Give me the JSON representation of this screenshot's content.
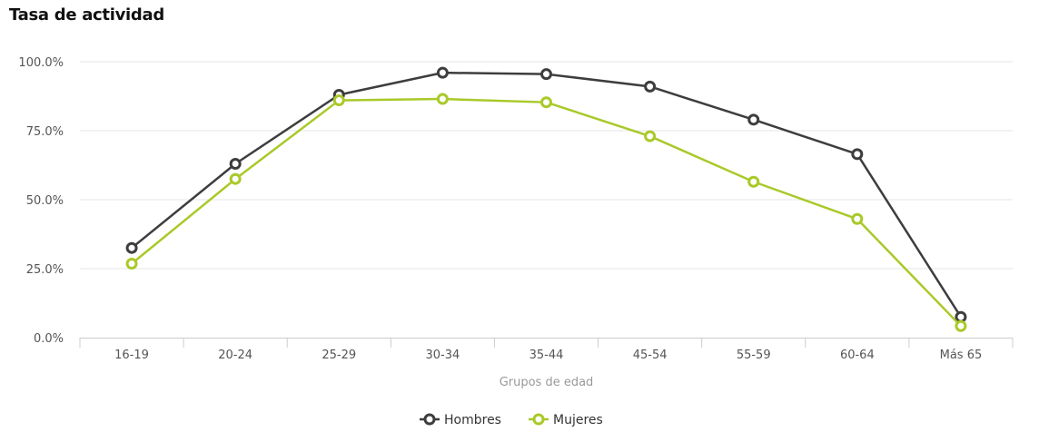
{
  "chart_data": {
    "type": "line",
    "title": "Tasa de actividad",
    "xlabel": "Grupos de edad",
    "ylabel": "",
    "categories": [
      "16-19",
      "20-24",
      "25-29",
      "30-34",
      "35-44",
      "45-54",
      "55-59",
      "60-64",
      "Más 65"
    ],
    "y_ticks": [
      "0.0%",
      "25.0%",
      "50.0%",
      "75.0%",
      "100.0%"
    ],
    "ylim": [
      0,
      100
    ],
    "grid": true,
    "legend": "bottom-center",
    "series": [
      {
        "name": "Hombres",
        "color": "#3d3d3d",
        "values": [
          32.5,
          63.0,
          88.0,
          96.0,
          95.5,
          91.0,
          79.0,
          66.5,
          7.5
        ]
      },
      {
        "name": "Mujeres",
        "color": "#a9c929",
        "values": [
          26.8,
          57.5,
          86.0,
          86.5,
          85.3,
          73.0,
          56.5,
          43.0,
          4.2
        ]
      }
    ]
  }
}
